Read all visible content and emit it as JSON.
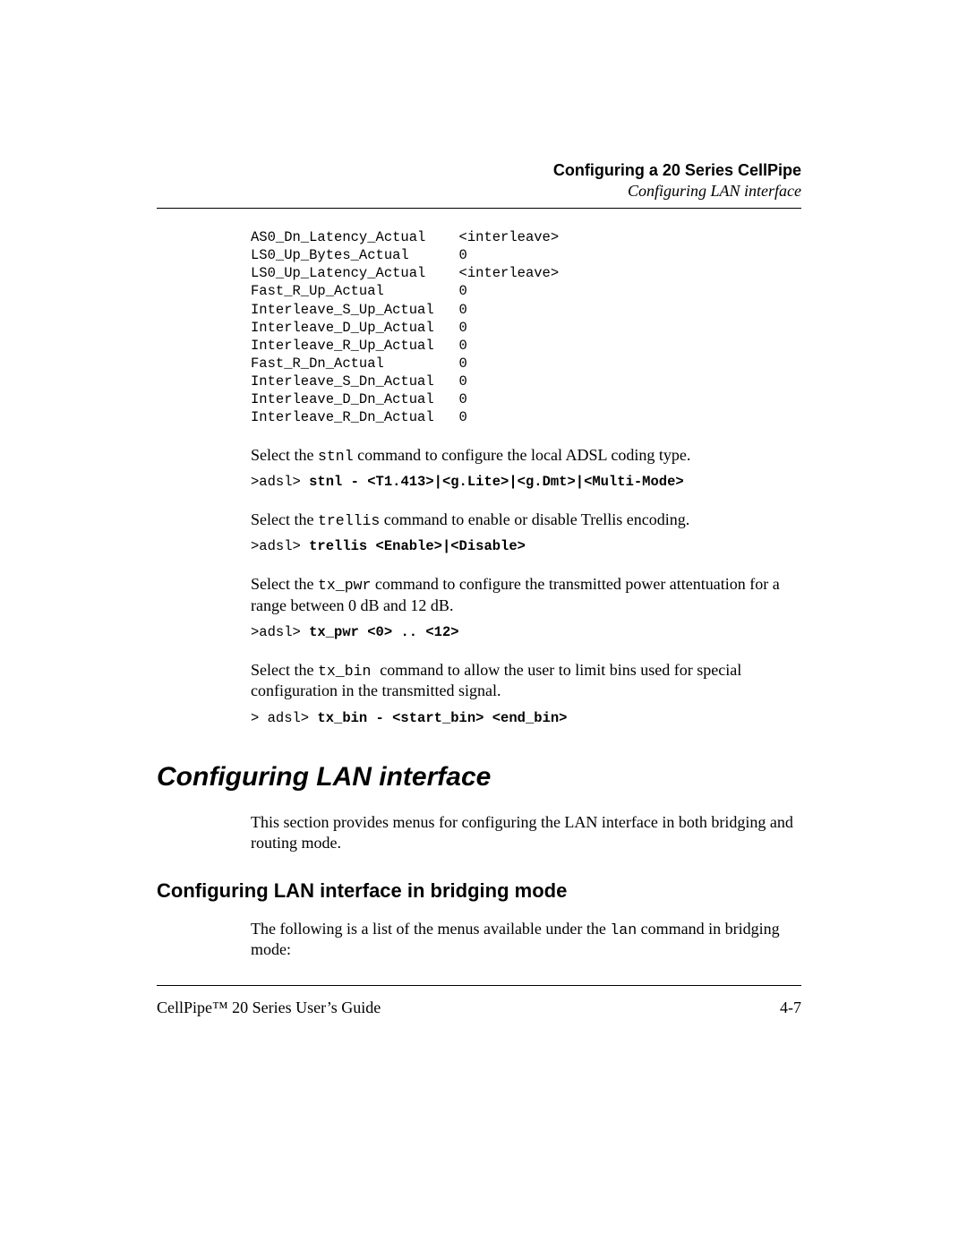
{
  "header": {
    "chapter": "Configuring a 20 Series CellPipe",
    "section": "Configuring LAN interface"
  },
  "status_table": {
    "rows": [
      {
        "name": "AS0_Dn_Latency_Actual",
        "value": "<interleave>"
      },
      {
        "name": "LS0_Up_Bytes_Actual",
        "value": "0"
      },
      {
        "name": "LS0_Up_Latency_Actual",
        "value": "<interleave>"
      },
      {
        "name": "Fast_R_Up_Actual",
        "value": "0"
      },
      {
        "name": "Interleave_S_Up_Actual",
        "value": "0"
      },
      {
        "name": "Interleave_D_Up_Actual",
        "value": "0"
      },
      {
        "name": "Interleave_R_Up_Actual",
        "value": "0"
      },
      {
        "name": "Fast_R_Dn_Actual",
        "value": "0"
      },
      {
        "name": "Interleave_S_Dn_Actual",
        "value": "0"
      },
      {
        "name": "Interleave_D_Dn_Actual",
        "value": "0"
      },
      {
        "name": "Interleave_R_Dn_Actual",
        "value": "0"
      }
    ],
    "name_col_width": 25
  },
  "stnl": {
    "para_pre": "Select the ",
    "cmd": "stnl",
    "para_post": " command to configure the local ADSL coding type.",
    "line_prefix": ">adsl> ",
    "line_bold": "stnl - <T1.413>|<g.Lite>|<g.Dmt>|<Multi-Mode>"
  },
  "trellis": {
    "para_pre": "Select the ",
    "cmd": "trellis",
    "para_post": " command to enable or disable Trellis encoding.",
    "line_prefix": ">adsl> ",
    "line_bold": "trellis <Enable>|<Disable>"
  },
  "txpwr": {
    "para_pre": "Select the ",
    "cmd": "tx_pwr",
    "para_post": " command to configure the transmitted power attentuation for a range between 0 dB and 12 dB.",
    "line_prefix": ">adsl> ",
    "line_bold": "tx_pwr <0> .. <12>"
  },
  "txbin": {
    "para_pre": "Select the ",
    "cmd": "tx_bin ",
    "para_post": " command to allow the user to limit bins used for special configuration in the transmitted signal.",
    "line_prefix": "> adsl> ",
    "line_bold": "tx_bin - <start_bin> <end_bin>"
  },
  "h1": "Configuring LAN interface",
  "intro": "This section provides menus for configuring the LAN interface in both bridging and routing mode.",
  "h2": "Configuring LAN interface in bridging mode",
  "bridging": {
    "para_pre": "The following is a list of the menus available under the ",
    "cmd": "lan",
    "para_post": " command in bridging mode:"
  },
  "footer": {
    "left": "CellPipe™ 20 Series User’s Guide",
    "right": "4-7"
  }
}
